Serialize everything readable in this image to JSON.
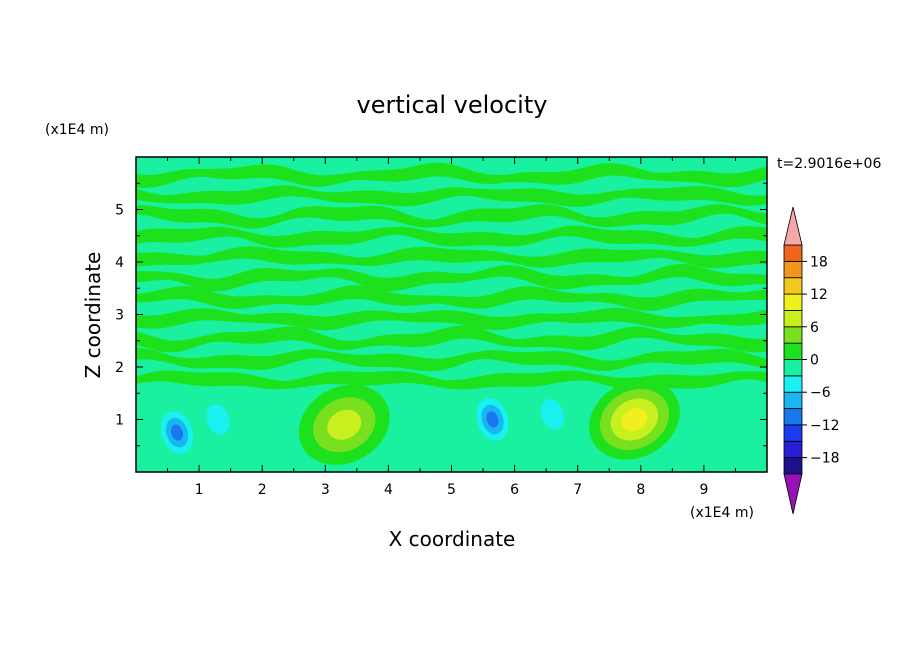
{
  "chart_data": {
    "type": "heatmap",
    "title": "vertical velocity",
    "xlabel": "X coordinate",
    "ylabel": "Z coordinate",
    "x_unit_label": "(x1E4 m)",
    "y_unit_label": "(x1E4 m)",
    "time_label": "t=2.9016e+06",
    "xlim": [
      0,
      10
    ],
    "ylim": [
      0,
      6
    ],
    "x_ticks": [
      1,
      2,
      3,
      4,
      5,
      6,
      7,
      8,
      9
    ],
    "y_ticks": [
      1,
      2,
      3,
      4,
      5
    ],
    "colorbar": {
      "levels": [
        -21,
        -18,
        -15,
        -12,
        -9,
        -6,
        -3,
        0,
        3,
        6,
        9,
        12,
        15,
        18,
        21
      ],
      "tick_labels": [
        -18,
        -12,
        -6,
        0,
        6,
        12,
        18
      ],
      "colors": [
        "#1e0f8c",
        "#2a1ed4",
        "#1c3cf0",
        "#1a78ee",
        "#19b6f0",
        "#19f0f0",
        "#19f0a0",
        "#1ee11e",
        "#78e01e",
        "#c8f01e",
        "#f0f01e",
        "#f0c81e",
        "#f0961e",
        "#f0641e",
        "#f0281e"
      ],
      "over_color": "#f4a8a8",
      "under_color": "#9614b4"
    },
    "features": [
      {
        "kind": "updraft",
        "x": 3.3,
        "z": 0.9,
        "peak": 7
      },
      {
        "kind": "updraft",
        "x": 7.9,
        "z": 1.0,
        "peak": 10
      },
      {
        "kind": "downdraft",
        "x": 0.65,
        "z": 0.75,
        "peak": -11
      },
      {
        "kind": "downdraft",
        "x": 5.65,
        "z": 1.0,
        "peak": -10
      },
      {
        "kind": "downdraft",
        "x": 1.3,
        "z": 1.0,
        "peak": -5
      },
      {
        "kind": "downdraft",
        "x": 6.6,
        "z": 1.1,
        "peak": -5
      }
    ]
  }
}
